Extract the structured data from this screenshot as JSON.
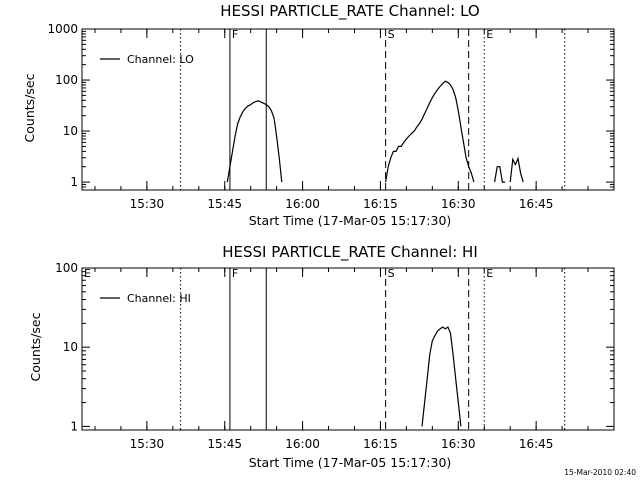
{
  "timestamp": "15-Mar-2010 02:40",
  "chart_data": [
    {
      "type": "line",
      "title": "HESSI PARTICLE_RATE Channel: LO",
      "xlabel": "Start Time (17-Mar-05 15:17:30)",
      "ylabel": "Counts/sec",
      "y_scale": "log",
      "x_range": [
        "15:17:30",
        "17:00:00"
      ],
      "y_range": [
        0.7,
        1000
      ],
      "x_ticks": [
        "15:30",
        "15:45",
        "16:00",
        "16:15",
        "16:30",
        "16:45"
      ],
      "y_ticks": [
        "1",
        "10",
        "100",
        "1000"
      ],
      "legend": {
        "position": "top-left",
        "entries": [
          "Channel: LO"
        ]
      },
      "grid": false,
      "markers": [
        {
          "time": "15:36:30",
          "style": "dotted",
          "label": ""
        },
        {
          "time": "15:46:00",
          "style": "solid",
          "label": "F"
        },
        {
          "time": "15:53:00",
          "style": "solid",
          "label": ""
        },
        {
          "time": "16:16:00",
          "style": "dashed",
          "label": "S"
        },
        {
          "time": "16:32:00",
          "style": "dashed",
          "label": ""
        },
        {
          "time": "16:35:00",
          "style": "dotted",
          "label": "E"
        },
        {
          "time": "16:50:30",
          "style": "dotted",
          "label": ""
        }
      ],
      "series": [
        {
          "name": "Channel: LO",
          "segments": [
            [
              [
                "15:45:30",
                1
              ],
              [
                "15:46:00",
                2
              ],
              [
                "15:46:30",
                4
              ],
              [
                "15:47:00",
                8
              ],
              [
                "15:47:30",
                14
              ],
              [
                "15:48:00",
                19
              ],
              [
                "15:48:30",
                24
              ],
              [
                "15:49:00",
                28
              ],
              [
                "15:49:30",
                31
              ],
              [
                "15:50:00",
                33
              ],
              [
                "15:50:30",
                36
              ],
              [
                "15:51:00",
                38
              ],
              [
                "15:51:30",
                39
              ],
              [
                "15:52:00",
                37
              ],
              [
                "15:52:30",
                35
              ],
              [
                "15:53:00",
                33
              ],
              [
                "15:53:30",
                30
              ],
              [
                "15:54:00",
                25
              ],
              [
                "15:54:30",
                18
              ],
              [
                "15:55:00",
                8
              ],
              [
                "15:55:30",
                3
              ],
              [
                "15:56:00",
                1
              ]
            ],
            [
              [
                "16:16:00",
                1
              ],
              [
                "16:16:30",
                2
              ],
              [
                "16:17:00",
                3
              ],
              [
                "16:17:30",
                4
              ],
              [
                "16:18:00",
                4
              ],
              [
                "16:18:30",
                5
              ],
              [
                "16:19:00",
                5
              ],
              [
                "16:19:30",
                6
              ],
              [
                "16:20:00",
                7
              ],
              [
                "16:20:30",
                8
              ],
              [
                "16:21:00",
                9
              ],
              [
                "16:21:30",
                10
              ],
              [
                "16:22:00",
                12
              ],
              [
                "16:22:30",
                14
              ],
              [
                "16:23:00",
                17
              ],
              [
                "16:23:30",
                22
              ],
              [
                "16:24:00",
                28
              ],
              [
                "16:24:30",
                36
              ],
              [
                "16:25:00",
                45
              ],
              [
                "16:25:30",
                55
              ],
              [
                "16:26:00",
                65
              ],
              [
                "16:26:30",
                75
              ],
              [
                "16:27:00",
                85
              ],
              [
                "16:27:30",
                95
              ],
              [
                "16:28:00",
                90
              ],
              [
                "16:28:30",
                80
              ],
              [
                "16:29:00",
                65
              ],
              [
                "16:29:30",
                45
              ],
              [
                "16:30:00",
                25
              ],
              [
                "16:30:30",
                12
              ],
              [
                "16:31:00",
                6
              ],
              [
                "16:31:30",
                3
              ],
              [
                "16:32:00",
                2
              ],
              [
                "16:32:30",
                1.5
              ],
              [
                "16:33:00",
                1
              ]
            ],
            [
              [
                "16:37:00",
                1
              ],
              [
                "16:37:30",
                2
              ],
              [
                "16:38:00",
                2
              ],
              [
                "16:38:30",
                1
              ],
              [
                "16:39:00",
                1
              ]
            ],
            [
              [
                "16:40:00",
                1
              ],
              [
                "16:40:30",
                2.8
              ],
              [
                "16:41:00",
                2.2
              ],
              [
                "16:41:30",
                2.9
              ],
              [
                "16:42:00",
                1.5
              ],
              [
                "16:42:30",
                1
              ]
            ]
          ]
        }
      ]
    },
    {
      "type": "line",
      "title": "HESSI PARTICLE_RATE Channel: HI",
      "xlabel": "Start Time (17-Mar-05 15:17:30)",
      "ylabel": "Counts/sec",
      "y_scale": "log",
      "x_range": [
        "15:17:30",
        "17:00:00"
      ],
      "y_range": [
        0.9,
        100
      ],
      "x_ticks": [
        "15:30",
        "15:45",
        "16:00",
        "16:15",
        "16:30",
        "16:45"
      ],
      "y_ticks": [
        "1",
        "10",
        "100"
      ],
      "legend": {
        "position": "top-left",
        "entries": [
          "Channel: HI"
        ]
      },
      "grid": false,
      "markers": [
        {
          "time": "15:17:30",
          "style": "none",
          "label": "E"
        },
        {
          "time": "15:36:30",
          "style": "dotted",
          "label": ""
        },
        {
          "time": "15:46:00",
          "style": "solid",
          "label": "F"
        },
        {
          "time": "15:53:00",
          "style": "solid",
          "label": ""
        },
        {
          "time": "16:16:00",
          "style": "dashed",
          "label": "S"
        },
        {
          "time": "16:32:00",
          "style": "dashed",
          "label": ""
        },
        {
          "time": "16:35:00",
          "style": "dotted",
          "label": "E"
        },
        {
          "time": "16:50:30",
          "style": "dotted",
          "label": ""
        }
      ],
      "series": [
        {
          "name": "Channel: HI",
          "segments": [
            [
              [
                "16:23:00",
                1
              ],
              [
                "16:23:30",
                2
              ],
              [
                "16:24:00",
                4
              ],
              [
                "16:24:30",
                8
              ],
              [
                "16:25:00",
                12
              ],
              [
                "16:25:30",
                14
              ],
              [
                "16:26:00",
                16
              ],
              [
                "16:26:30",
                17
              ],
              [
                "16:27:00",
                18
              ],
              [
                "16:27:30",
                17
              ],
              [
                "16:28:00",
                18
              ],
              [
                "16:28:30",
                15
              ],
              [
                "16:29:00",
                8
              ],
              [
                "16:29:30",
                4
              ],
              [
                "16:30:00",
                2
              ],
              [
                "16:30:30",
                1
              ]
            ]
          ]
        }
      ]
    }
  ]
}
